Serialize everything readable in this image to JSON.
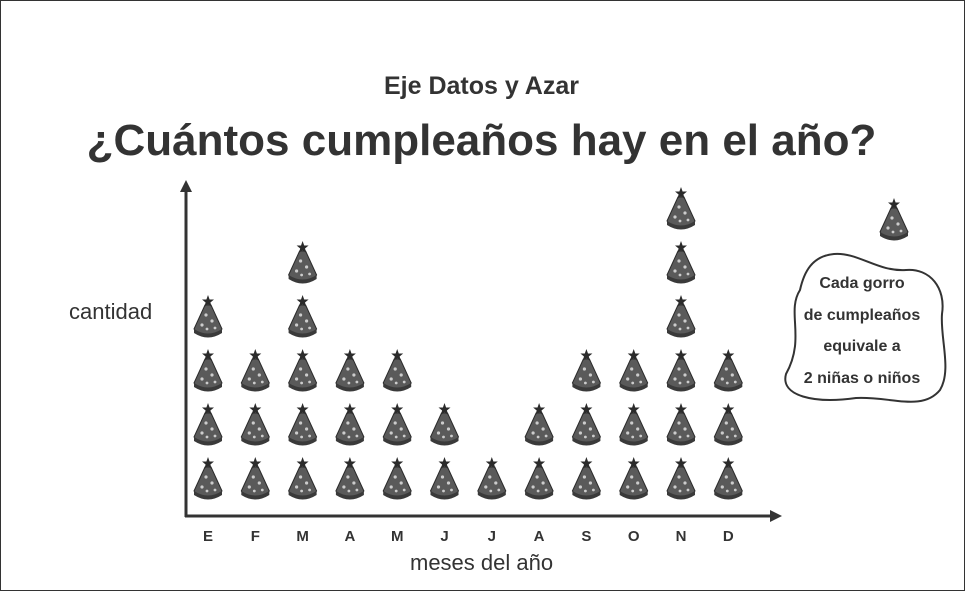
{
  "header": {
    "subtitle": "Eje Datos y Azar",
    "title": "¿Cuántos cumpleaños hay en el año?"
  },
  "legend": {
    "icon": "party-hat-icon",
    "lines": [
      "Cada gorro",
      "de cumpleaños",
      "equivale a",
      "2 niñas o niños"
    ]
  },
  "chart_data": {
    "type": "pictograph",
    "xlabel": "meses del año",
    "ylabel": "cantidad",
    "categories": [
      "E",
      "F",
      "M",
      "A",
      "M",
      "J",
      "J",
      "A",
      "S",
      "O",
      "N",
      "D"
    ],
    "icons": [
      4,
      3,
      5,
      3,
      3,
      2,
      1,
      2,
      3,
      3,
      6,
      3
    ],
    "values": [
      8,
      6,
      10,
      6,
      6,
      4,
      2,
      4,
      6,
      6,
      12,
      6
    ],
    "icon_value": 2,
    "icon": "party-hat-icon",
    "colors": {
      "ink": "#333333",
      "hat": "#5a5a5a",
      "accent": "#cccccc"
    }
  }
}
